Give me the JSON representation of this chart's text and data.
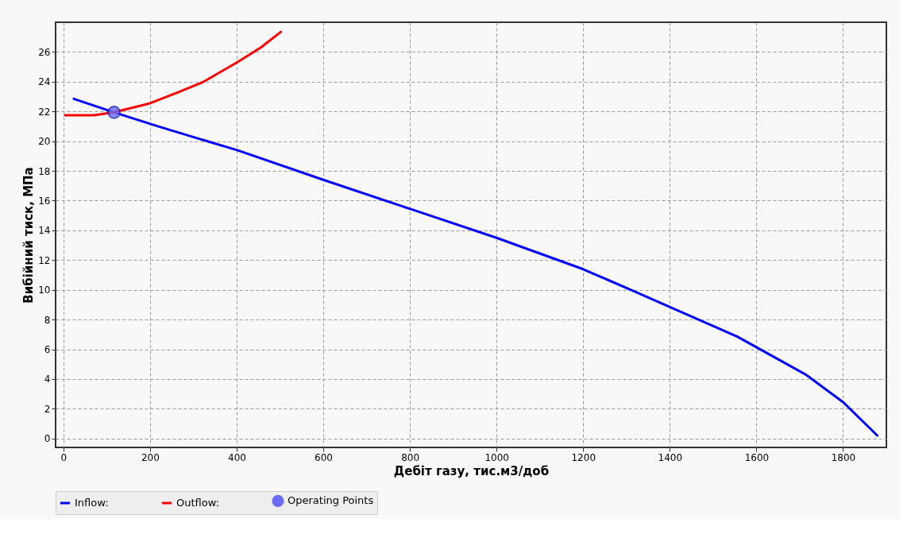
{
  "chart_data": {
    "type": "line",
    "xlabel": "Дебіт газу, тис.м3/доб",
    "ylabel": "Вибійний тиск, МПа",
    "xlim": [
      -18,
      1900
    ],
    "ylim": [
      -0.6,
      28
    ],
    "xticks": [
      0,
      200,
      400,
      600,
      800,
      1000,
      1200,
      1400,
      1600,
      1800
    ],
    "yticks": [
      0,
      2,
      4,
      6,
      8,
      10,
      12,
      14,
      16,
      18,
      20,
      22,
      24,
      26
    ],
    "grid": true,
    "legend": "bottom",
    "series": [
      {
        "name": "Inflow:",
        "color": "#0000ff",
        "x": [
          24,
          117,
          218,
          286,
          401,
          600,
          805,
          1000,
          1199,
          1318,
          1556,
          1714,
          1800,
          1879
        ],
        "values": [
          22.85,
          21.94,
          21.0,
          20.4,
          19.4,
          17.4,
          15.4,
          13.5,
          11.4,
          9.9,
          6.85,
          4.3,
          2.45,
          0.2
        ]
      },
      {
        "name": "Outflow:",
        "color": "#ff0000",
        "x": [
          4,
          71,
          117,
          200,
          266,
          324,
          401,
          456,
          502
        ],
        "values": [
          21.75,
          21.75,
          21.95,
          22.55,
          23.3,
          24.0,
          25.3,
          26.3,
          27.35
        ]
      },
      {
        "name": "Operating Points",
        "color": "#6b6bf5",
        "type": "scatter",
        "marker": "circle",
        "x": [
          117
        ],
        "values": [
          21.94
        ]
      }
    ]
  }
}
